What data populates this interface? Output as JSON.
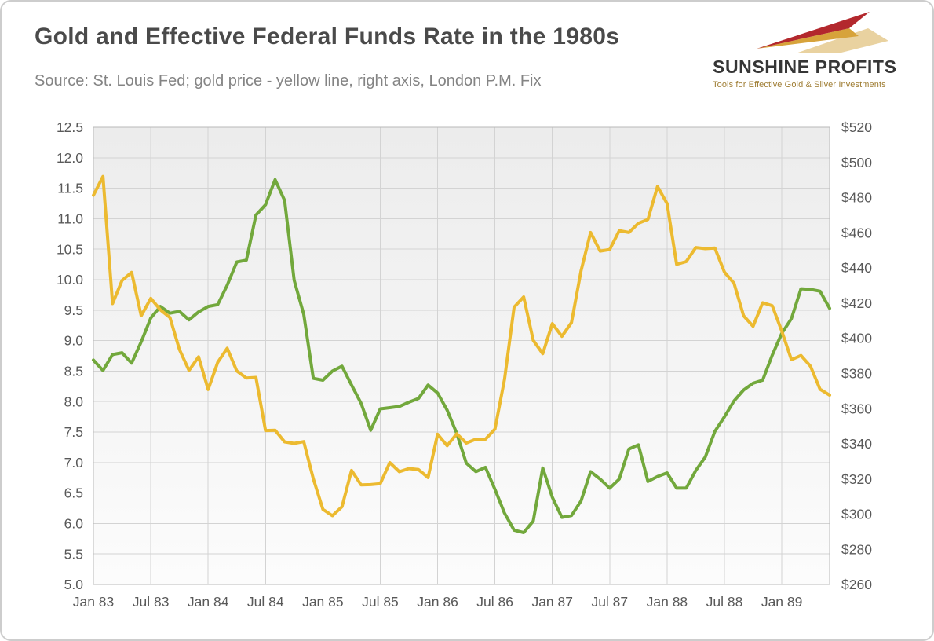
{
  "header": {
    "title": "Gold and Effective Federal Funds Rate in the 1980s",
    "source": "Source: St. Louis Fed; gold price - yellow line, right axis, London P.M. Fix"
  },
  "logo": {
    "brand": "SUNSHINE PROFITS",
    "tagline": "Tools for Effective Gold & Silver Investments",
    "colors": {
      "red": "#b3282d",
      "gold": "#d7a33b",
      "pale": "#e9d2a0"
    }
  },
  "chart_data": {
    "type": "line",
    "title": "Gold and Effective Federal Funds Rate in the 1980s",
    "grid": true,
    "legend": "none",
    "x_tick_every": 6,
    "x_labels": [
      "Jan 83",
      "Feb 83",
      "Mar 83",
      "Apr 83",
      "May 83",
      "Jun 83",
      "Jul 83",
      "Aug 83",
      "Sep 83",
      "Oct 83",
      "Nov 83",
      "Dec 83",
      "Jan 84",
      "Feb 84",
      "Mar 84",
      "Apr 84",
      "May 84",
      "Jun 84",
      "Jul 84",
      "Aug 84",
      "Sep 84",
      "Oct 84",
      "Nov 84",
      "Dec 84",
      "Jan 85",
      "Feb 85",
      "Mar 85",
      "Apr 85",
      "May 85",
      "Jun 85",
      "Jul 85",
      "Aug 85",
      "Sep 85",
      "Oct 85",
      "Nov 85",
      "Dec 85",
      "Jan 86",
      "Feb 86",
      "Mar 86",
      "Apr 86",
      "May 86",
      "Jun 86",
      "Jul 86",
      "Aug 86",
      "Sep 86",
      "Oct 86",
      "Nov 86",
      "Dec 86",
      "Jan 87",
      "Feb 87",
      "Mar 87",
      "Apr 87",
      "May 87",
      "Jun 87",
      "Jul 87",
      "Aug 87",
      "Sep 87",
      "Oct 87",
      "Nov 87",
      "Dec 87",
      "Jan 88",
      "Feb 88",
      "Mar 88",
      "Apr 88",
      "May 88",
      "Jun 88",
      "Jul 88",
      "Aug 88",
      "Sep 88",
      "Oct 88",
      "Nov 88",
      "Dec 88",
      "Jan 89",
      "Feb 89",
      "Mar 89",
      "Apr 89",
      "May 89",
      "Jun 89"
    ],
    "left_axis": {
      "min": 5.0,
      "max": 12.5,
      "step": 0.5,
      "format": "fixed1"
    },
    "right_axis": {
      "min": 260,
      "max": 520,
      "step": 20,
      "format": "dollar"
    },
    "series": [
      {
        "name": "Effective Federal Funds Rate (%)",
        "axis": "left",
        "color": "#72A83C",
        "values": [
          8.68,
          8.51,
          8.77,
          8.8,
          8.63,
          8.98,
          9.37,
          9.56,
          9.45,
          9.48,
          9.34,
          9.47,
          9.56,
          9.59,
          9.91,
          10.29,
          10.32,
          11.06,
          11.23,
          11.64,
          11.3,
          9.99,
          9.43,
          8.38,
          8.35,
          8.5,
          8.58,
          8.27,
          7.97,
          7.53,
          7.88,
          7.9,
          7.92,
          7.99,
          8.05,
          8.27,
          8.14,
          7.86,
          7.48,
          6.99,
          6.85,
          6.92,
          6.56,
          6.17,
          5.89,
          5.85,
          6.04,
          6.91,
          6.43,
          6.1,
          6.13,
          6.37,
          6.85,
          6.73,
          6.58,
          6.73,
          7.22,
          7.29,
          6.69,
          6.77,
          6.83,
          6.58,
          6.58,
          6.87,
          7.09,
          7.51,
          7.75,
          8.01,
          8.19,
          8.3,
          8.35,
          8.76,
          9.12,
          9.36,
          9.85,
          9.84,
          9.81,
          9.53
        ]
      },
      {
        "name": "Gold price, London P.M. Fix ($)",
        "axis": "right",
        "color": "#ECBA30",
        "values": [
          481.3,
          492.0,
          419.7,
          432.9,
          437.5,
          412.8,
          422.7,
          416.2,
          411.8,
          393.6,
          381.7,
          389.4,
          370.9,
          386.3,
          394.3,
          381.4,
          377.4,
          377.7,
          347.5,
          347.7,
          341.1,
          340.2,
          341.2,
          320.1,
          302.7,
          299.1,
          304.2,
          324.8,
          316.6,
          316.8,
          317.3,
          329.3,
          324.1,
          325.9,
          325.3,
          320.8,
          345.4,
          338.9,
          345.7,
          340.4,
          342.6,
          342.6,
          348.3,
          376.6,
          417.7,
          423.5,
          398.8,
          391.2,
          408.3,
          401.1,
          408.9,
          438.4,
          460.2,
          449.6,
          450.5,
          461.2,
          460.2,
          465.4,
          467.6,
          486.3,
          476.6,
          442.1,
          443.6,
          451.6,
          451.0,
          451.3,
          437.6,
          431.3,
          412.8,
          406.8,
          420.2,
          418.5,
          404.0,
          387.8,
          390.2,
          384.1,
          371.0,
          367.6
        ]
      }
    ]
  }
}
